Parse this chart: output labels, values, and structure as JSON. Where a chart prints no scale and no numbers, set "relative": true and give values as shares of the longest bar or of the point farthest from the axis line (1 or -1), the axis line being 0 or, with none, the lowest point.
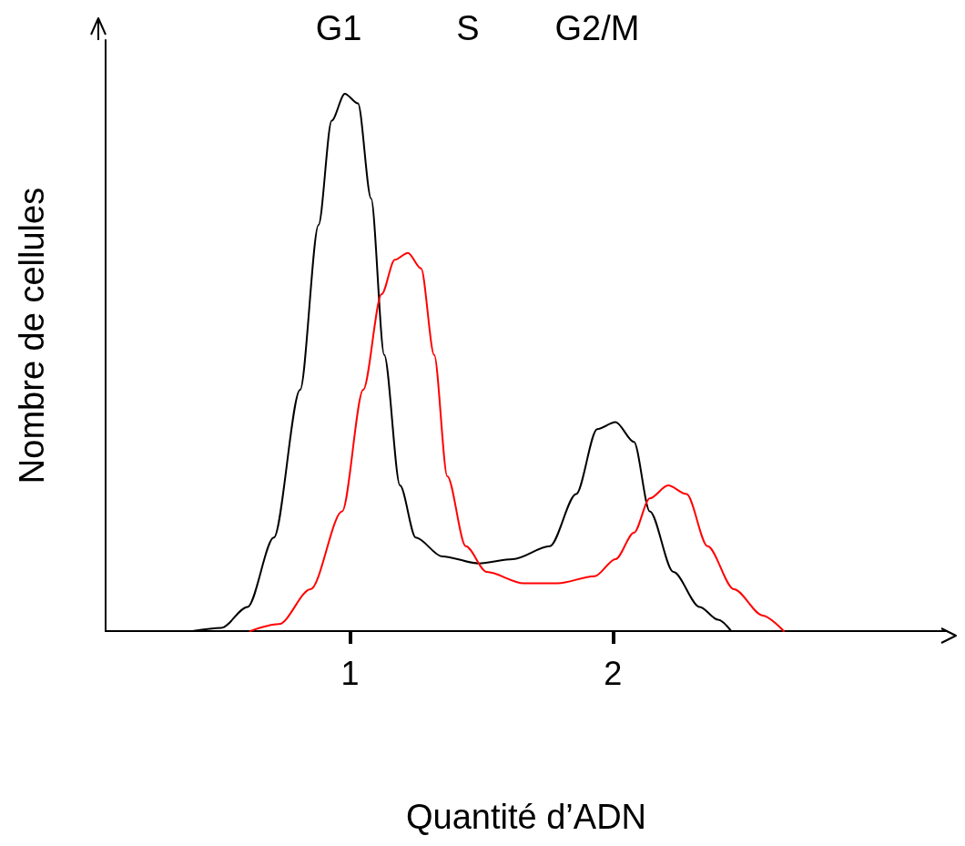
{
  "chart_data": {
    "type": "line",
    "relative": true,
    "xlabel": "Quantité d’ADN",
    "ylabel": "Nombre de cellules",
    "xlim": [
      0.07,
      3.27
    ],
    "xticks": [
      1,
      2
    ],
    "marker": "none",
    "line_style": "solid",
    "annotations": [
      "G1",
      "S",
      "G2/M"
    ],
    "series": [
      {
        "color": "#000000",
        "x": [
          0.4,
          0.51,
          0.61,
          0.71,
          0.81,
          0.88,
          0.93,
          0.98,
          1.03,
          1.08,
          1.13,
          1.19,
          1.25,
          1.35,
          1.49,
          1.62,
          1.76,
          1.86,
          1.94,
          2.01,
          2.08,
          2.14,
          2.23,
          2.33,
          2.4,
          2.45
        ],
        "values": [
          0,
          0.006,
          0.045,
          0.174,
          0.449,
          0.756,
          0.95,
          1,
          0.982,
          0.805,
          0.514,
          0.271,
          0.174,
          0.139,
          0.126,
          0.134,
          0.158,
          0.255,
          0.376,
          0.389,
          0.352,
          0.223,
          0.11,
          0.045,
          0.021,
          0
        ]
      },
      {
        "color": "#ff0000",
        "x": [
          0.62,
          0.73,
          0.85,
          0.97,
          1.05,
          1.12,
          1.17,
          1.22,
          1.27,
          1.32,
          1.37,
          1.44,
          1.52,
          1.66,
          1.79,
          1.93,
          2.01,
          2.08,
          2.14,
          2.21,
          2.28,
          2.36,
          2.46,
          2.57,
          2.65
        ],
        "values": [
          0,
          0.013,
          0.078,
          0.223,
          0.449,
          0.627,
          0.691,
          0.704,
          0.675,
          0.514,
          0.288,
          0.158,
          0.11,
          0.089,
          0.089,
          0.102,
          0.134,
          0.183,
          0.247,
          0.271,
          0.255,
          0.158,
          0.078,
          0.029,
          0
        ]
      }
    ]
  }
}
